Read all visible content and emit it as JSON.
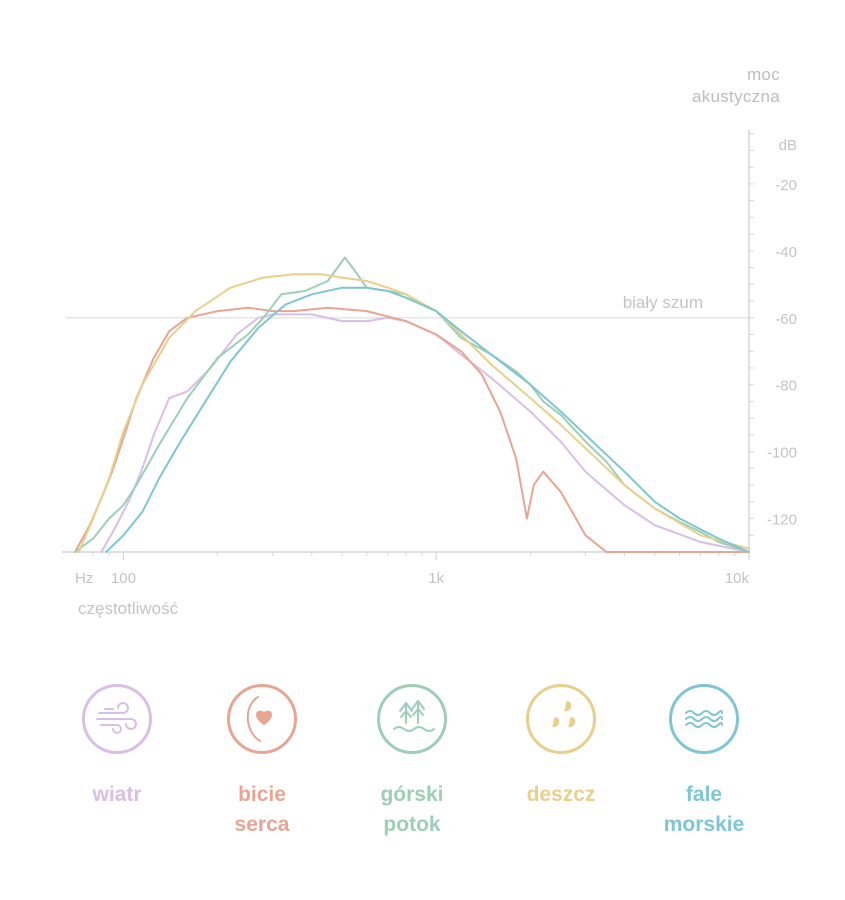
{
  "chart_data": {
    "type": "line",
    "ylabel": "moc akustyczna",
    "yunit": "dB",
    "xlabel": "częstotliwość",
    "xunit": "Hz",
    "x_scale": "log",
    "xlim": [
      70,
      10000
    ],
    "ylim": [
      -130,
      0
    ],
    "x_ticks": [
      {
        "value": 100,
        "label": "100"
      },
      {
        "value": 1000,
        "label": "1k"
      },
      {
        "value": 10000,
        "label": "10k"
      }
    ],
    "y_ticks": [
      -20,
      -40,
      -60,
      -80,
      -100,
      -120
    ],
    "reference_line": {
      "label": "biały szum",
      "y": -60
    },
    "grid": false,
    "series": [
      {
        "name": "wiatr",
        "color": "#d9bfe6",
        "points": [
          [
            85,
            -130
          ],
          [
            95,
            -122
          ],
          [
            105,
            -114
          ],
          [
            115,
            -105
          ],
          [
            125,
            -95
          ],
          [
            140,
            -84
          ],
          [
            160,
            -82
          ],
          [
            190,
            -75
          ],
          [
            230,
            -65
          ],
          [
            270,
            -60
          ],
          [
            300,
            -59
          ],
          [
            340,
            -59
          ],
          [
            400,
            -59
          ],
          [
            500,
            -61
          ],
          [
            600,
            -61
          ],
          [
            700,
            -60
          ],
          [
            800,
            -61
          ],
          [
            1000,
            -65
          ],
          [
            1200,
            -71
          ],
          [
            1500,
            -78
          ],
          [
            2000,
            -88
          ],
          [
            2500,
            -97
          ],
          [
            3000,
            -106
          ],
          [
            4000,
            -116
          ],
          [
            5000,
            -122
          ],
          [
            7000,
            -127
          ],
          [
            10000,
            -130
          ]
        ]
      },
      {
        "name": "bicie serca",
        "color": "#e8a593",
        "points": [
          [
            70,
            -130
          ],
          [
            78,
            -122
          ],
          [
            85,
            -114
          ],
          [
            92,
            -106
          ],
          [
            100,
            -96
          ],
          [
            110,
            -84
          ],
          [
            125,
            -72
          ],
          [
            140,
            -64
          ],
          [
            160,
            -60
          ],
          [
            200,
            -58
          ],
          [
            250,
            -57
          ],
          [
            300,
            -58
          ],
          [
            350,
            -58
          ],
          [
            450,
            -57
          ],
          [
            600,
            -58
          ],
          [
            800,
            -61
          ],
          [
            1000,
            -65
          ],
          [
            1200,
            -70
          ],
          [
            1400,
            -77
          ],
          [
            1600,
            -88
          ],
          [
            1800,
            -102
          ],
          [
            1950,
            -120
          ],
          [
            2050,
            -110
          ],
          [
            2200,
            -106
          ],
          [
            2500,
            -112
          ],
          [
            3000,
            -125
          ],
          [
            3500,
            -130
          ],
          [
            4000,
            -130
          ],
          [
            10000,
            -130
          ]
        ]
      },
      {
        "name": "górski potok",
        "color": "#9ccfb6",
        "points": [
          [
            70,
            -130
          ],
          [
            80,
            -126
          ],
          [
            90,
            -120
          ],
          [
            100,
            -116
          ],
          [
            110,
            -110
          ],
          [
            130,
            -98
          ],
          [
            160,
            -84
          ],
          [
            200,
            -72
          ],
          [
            250,
            -65
          ],
          [
            280,
            -60
          ],
          [
            320,
            -53
          ],
          [
            380,
            -52
          ],
          [
            450,
            -49
          ],
          [
            510,
            -42
          ],
          [
            540,
            -45
          ],
          [
            600,
            -51
          ],
          [
            700,
            -52
          ],
          [
            800,
            -53
          ],
          [
            900,
            -56
          ],
          [
            1000,
            -58
          ],
          [
            1200,
            -66
          ],
          [
            1500,
            -71
          ],
          [
            1800,
            -76
          ],
          [
            2000,
            -80
          ],
          [
            2200,
            -85
          ],
          [
            2500,
            -89
          ],
          [
            3000,
            -97
          ],
          [
            3500,
            -103
          ],
          [
            4000,
            -110
          ],
          [
            5000,
            -117
          ],
          [
            6000,
            -121
          ],
          [
            7000,
            -124
          ],
          [
            8000,
            -127
          ],
          [
            10000,
            -130
          ]
        ]
      },
      {
        "name": "deszcz",
        "color": "#e8d08a",
        "points": [
          [
            72,
            -130
          ],
          [
            80,
            -120
          ],
          [
            90,
            -108
          ],
          [
            100,
            -94
          ],
          [
            115,
            -80
          ],
          [
            140,
            -66
          ],
          [
            170,
            -58
          ],
          [
            220,
            -51
          ],
          [
            280,
            -48
          ],
          [
            350,
            -47
          ],
          [
            430,
            -47
          ],
          [
            500,
            -48
          ],
          [
            600,
            -49
          ],
          [
            700,
            -51
          ],
          [
            800,
            -53
          ],
          [
            1000,
            -58
          ],
          [
            1200,
            -65
          ],
          [
            1500,
            -74
          ],
          [
            2000,
            -84
          ],
          [
            2500,
            -92
          ],
          [
            3000,
            -99
          ],
          [
            4000,
            -110
          ],
          [
            5000,
            -117
          ],
          [
            7000,
            -125
          ],
          [
            10000,
            -129
          ]
        ]
      },
      {
        "name": "fale morskie",
        "color": "#7fc6d5",
        "points": [
          [
            88,
            -130
          ],
          [
            100,
            -125
          ],
          [
            115,
            -118
          ],
          [
            130,
            -108
          ],
          [
            150,
            -98
          ],
          [
            180,
            -86
          ],
          [
            220,
            -73
          ],
          [
            270,
            -63
          ],
          [
            330,
            -56
          ],
          [
            400,
            -53
          ],
          [
            500,
            -51
          ],
          [
            600,
            -51
          ],
          [
            700,
            -52
          ],
          [
            800,
            -54
          ],
          [
            1000,
            -58
          ],
          [
            1200,
            -64
          ],
          [
            1500,
            -71
          ],
          [
            2000,
            -80
          ],
          [
            2500,
            -88
          ],
          [
            3000,
            -95
          ],
          [
            4000,
            -106
          ],
          [
            5000,
            -115
          ],
          [
            6000,
            -120
          ],
          [
            8000,
            -126
          ],
          [
            10000,
            -130
          ]
        ]
      }
    ]
  },
  "legend": [
    {
      "label_line1": "wiatr",
      "label_line2": "",
      "color": "#d9bfe6",
      "icon": "wind-icon"
    },
    {
      "label_line1": "bicie",
      "label_line2": "serca",
      "color": "#e8a593",
      "icon": "heartbeat-icon"
    },
    {
      "label_line1": "górski",
      "label_line2": "potok",
      "color": "#9ccfb6",
      "icon": "mountain-stream-icon"
    },
    {
      "label_line1": "deszcz",
      "label_line2": "",
      "color": "#e8d08a",
      "icon": "rain-drops-icon"
    },
    {
      "label_line1": "fale",
      "label_line2": "morskie",
      "color": "#7fc6d5",
      "icon": "sea-waves-icon"
    }
  ],
  "ylabel_lines": [
    "moc",
    "akustyczna"
  ]
}
